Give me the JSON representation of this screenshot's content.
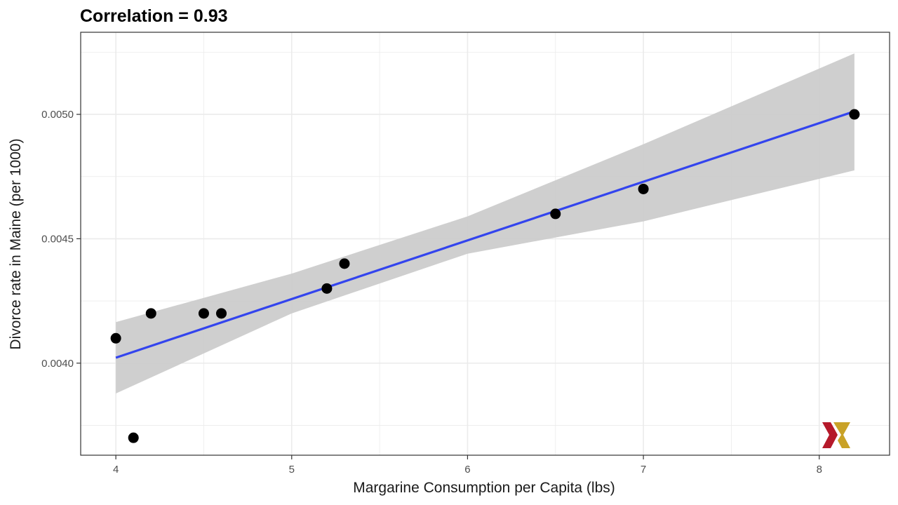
{
  "chart_data": {
    "type": "scatter",
    "title": "Correlation = 0.93",
    "xlabel": "Margarine Consumption per Capita (lbs)",
    "ylabel": "Divorce rate in Maine (per 1000)",
    "xlim": [
      3.8,
      8.4
    ],
    "ylim": [
      0.00363,
      0.00533
    ],
    "x_ticks": [
      4,
      5,
      6,
      7,
      8
    ],
    "y_ticks": [
      0.004,
      0.0045,
      0.005
    ],
    "y_tick_labels": [
      "0.0040",
      "0.0045",
      "0.0050"
    ],
    "grid": true,
    "points": [
      {
        "x": 4.0,
        "y": 0.0041
      },
      {
        "x": 4.1,
        "y": 0.0037
      },
      {
        "x": 4.2,
        "y": 0.0042
      },
      {
        "x": 4.5,
        "y": 0.0042
      },
      {
        "x": 4.6,
        "y": 0.0042
      },
      {
        "x": 5.2,
        "y": 0.0043
      },
      {
        "x": 5.3,
        "y": 0.0044
      },
      {
        "x": 6.5,
        "y": 0.0046
      },
      {
        "x": 7.0,
        "y": 0.0047
      },
      {
        "x": 8.2,
        "y": 0.005
      }
    ],
    "fit_line": {
      "x": [
        4.0,
        8.2
      ],
      "y": [
        0.004022,
        0.005012
      ]
    },
    "confidence_band": {
      "x": [
        4.0,
        5.0,
        6.0,
        7.0,
        8.2
      ],
      "lower": [
        0.003878,
        0.0042,
        0.00444,
        0.00457,
        0.004775
      ],
      "upper": [
        0.004165,
        0.00436,
        0.00459,
        0.00488,
        0.005245
      ]
    },
    "colors": {
      "points": "#000000",
      "fit_line": "#3344ee",
      "band": "#cccccc",
      "grid": "#ebebeb",
      "panel_border": "#333333"
    }
  },
  "logo": {
    "name": "x-logo-icon",
    "colors": [
      "#b5192a",
      "#c9a227"
    ]
  }
}
